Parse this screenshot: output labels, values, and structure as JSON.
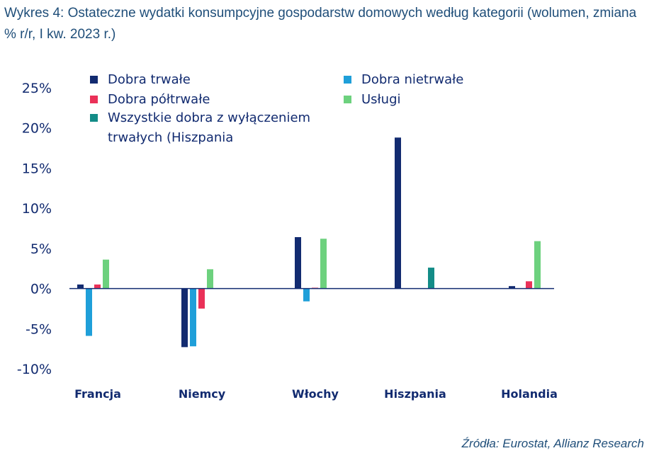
{
  "title": "Wykres 4: Ostateczne wydatki konsumpcyjne gospodarstw domowych według kategorii (wolumen, zmiana % r/r, I kw. 2023 r.)",
  "source": "Źródła: Eurostat, Allianz Research",
  "chart_data": {
    "type": "bar",
    "categories": [
      "Francja",
      "Niemcy",
      "Włochy",
      "Hiszpania",
      "Holandia"
    ],
    "ylim": [
      -10,
      25
    ],
    "yticks": [
      25,
      20,
      15,
      10,
      5,
      0,
      -5,
      -10
    ],
    "ytick_labels": [
      "25%",
      "20%",
      "15%",
      "10%",
      "5%",
      "0%",
      "-5%",
      "-10%"
    ],
    "legend_position": "top",
    "grid": false,
    "series": [
      {
        "name": "Dobra trwałe",
        "color": "#122b70",
        "values": [
          0.5,
          -7.3,
          6.4,
          18.8,
          0.3
        ]
      },
      {
        "name": "Dobra nietrwałe",
        "color": "#1f9fd9",
        "values": [
          -5.9,
          -7.2,
          -1.6,
          null,
          null
        ]
      },
      {
        "name": "Dobra półtrwałe",
        "color": "#ea3158",
        "values": [
          0.5,
          -2.5,
          0.1,
          null,
          0.9
        ]
      },
      {
        "name": "Usługi",
        "color": "#6dd17e",
        "values": [
          3.6,
          2.4,
          6.2,
          null,
          5.9
        ]
      },
      {
        "name": "Wszystkie dobra z wyłączeniem trwałych (Hiszpania",
        "color": "#138c87",
        "values": [
          null,
          null,
          null,
          2.6,
          null
        ]
      }
    ],
    "legend": [
      {
        "series": 0,
        "lines": [
          "Dobra trwałe"
        ]
      },
      {
        "series": 1,
        "lines": [
          "Dobra nietrwałe"
        ]
      },
      {
        "series": 2,
        "lines": [
          "Dobra półtrwałe"
        ]
      },
      {
        "series": 3,
        "lines": [
          "Usługi"
        ]
      },
      {
        "series": 4,
        "lines": [
          "Wszystkie dobra z wyłączeniem",
          "trwałych (Hiszpania"
        ]
      }
    ]
  }
}
